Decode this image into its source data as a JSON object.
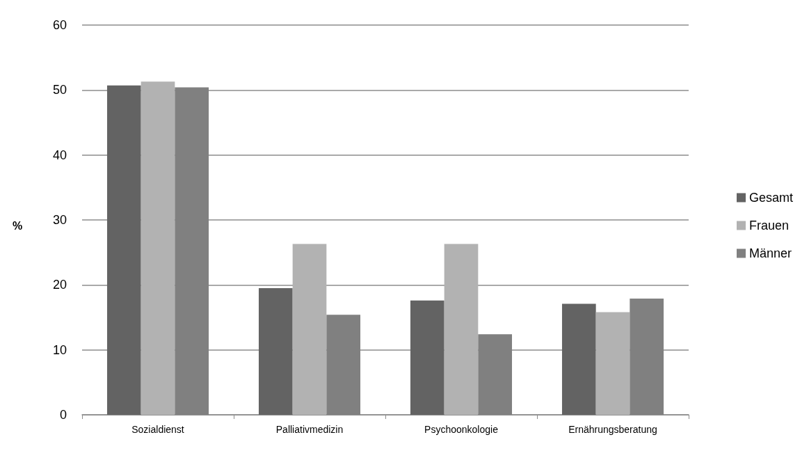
{
  "chart_data": {
    "type": "bar",
    "ylabel": "%",
    "categories": [
      "Sozialdienst",
      "Palliativmedizin",
      "Psychoonkologie",
      "Ernährungsberatung"
    ],
    "series": [
      {
        "name": "Gesamt",
        "color": "#636363",
        "values": [
          50.7,
          19.5,
          17.6,
          17.1
        ]
      },
      {
        "name": "Frauen",
        "color": "#b2b2b2",
        "values": [
          51.3,
          26.3,
          26.3,
          15.8
        ]
      },
      {
        "name": "Männer",
        "color": "#808080",
        "values": [
          50.4,
          15.4,
          12.4,
          17.9
        ]
      }
    ],
    "ylim": [
      0,
      60
    ],
    "yticks": [
      0,
      10,
      20,
      30,
      40,
      50,
      60
    ],
    "grid": "y",
    "legend": "right"
  }
}
